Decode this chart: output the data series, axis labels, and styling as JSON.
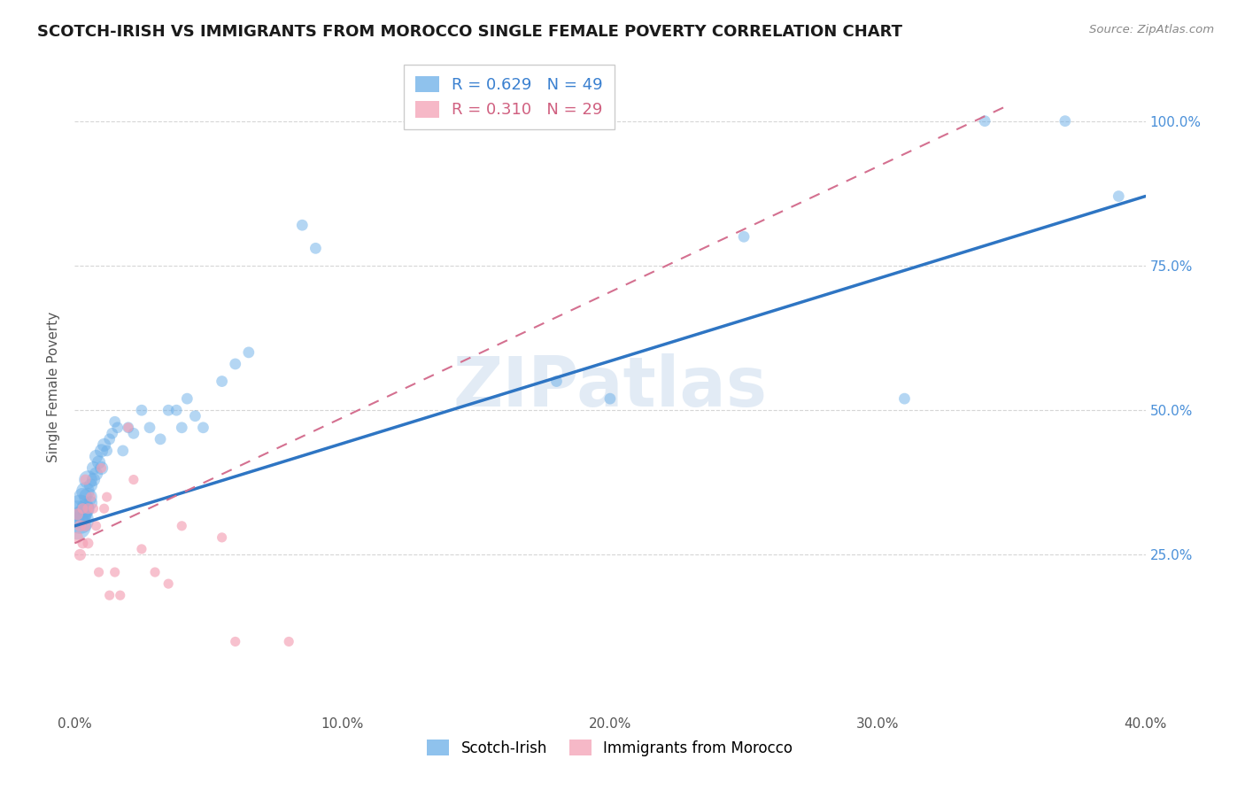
{
  "title": "SCOTCH-IRISH VS IMMIGRANTS FROM MOROCCO SINGLE FEMALE POVERTY CORRELATION CHART",
  "source": "Source: ZipAtlas.com",
  "ylabel": "Single Female Poverty",
  "xlim": [
    0.0,
    0.4
  ],
  "ylim": [
    -0.02,
    1.1
  ],
  "legend_blue_R": "0.629",
  "legend_blue_N": "49",
  "legend_pink_R": "0.310",
  "legend_pink_N": "29",
  "blue_color": "#6aaee8",
  "pink_color": "#f4a0b5",
  "trendline_blue_color": "#2e75c3",
  "trendline_pink_color": "#d47090",
  "watermark": "ZIPatlas",
  "blue_x": [
    0.001,
    0.001,
    0.002,
    0.002,
    0.003,
    0.003,
    0.004,
    0.004,
    0.005,
    0.005,
    0.006,
    0.006,
    0.007,
    0.007,
    0.008,
    0.008,
    0.009,
    0.01,
    0.01,
    0.011,
    0.012,
    0.013,
    0.014,
    0.015,
    0.016,
    0.018,
    0.02,
    0.022,
    0.025,
    0.028,
    0.032,
    0.035,
    0.038,
    0.04,
    0.042,
    0.045,
    0.048,
    0.055,
    0.06,
    0.065,
    0.085,
    0.09,
    0.18,
    0.2,
    0.25,
    0.31,
    0.34,
    0.37,
    0.39
  ],
  "blue_y": [
    0.32,
    0.3,
    0.33,
    0.31,
    0.35,
    0.32,
    0.36,
    0.33,
    0.38,
    0.35,
    0.37,
    0.34,
    0.4,
    0.38,
    0.42,
    0.39,
    0.41,
    0.43,
    0.4,
    0.44,
    0.43,
    0.45,
    0.46,
    0.48,
    0.47,
    0.43,
    0.47,
    0.46,
    0.5,
    0.47,
    0.45,
    0.5,
    0.5,
    0.47,
    0.52,
    0.49,
    0.47,
    0.55,
    0.58,
    0.6,
    0.82,
    0.78,
    0.55,
    0.52,
    0.8,
    0.52,
    1.0,
    1.0,
    0.87
  ],
  "pink_x": [
    0.001,
    0.001,
    0.002,
    0.002,
    0.003,
    0.003,
    0.004,
    0.004,
    0.005,
    0.005,
    0.006,
    0.007,
    0.008,
    0.009,
    0.01,
    0.011,
    0.012,
    0.013,
    0.015,
    0.017,
    0.02,
    0.022,
    0.025,
    0.03,
    0.035,
    0.04,
    0.055,
    0.06,
    0.08
  ],
  "pink_y": [
    0.32,
    0.28,
    0.3,
    0.25,
    0.33,
    0.27,
    0.38,
    0.3,
    0.33,
    0.27,
    0.35,
    0.33,
    0.3,
    0.22,
    0.4,
    0.33,
    0.35,
    0.18,
    0.22,
    0.18,
    0.47,
    0.38,
    0.26,
    0.22,
    0.2,
    0.3,
    0.28,
    0.1,
    0.1
  ],
  "blue_trend_x": [
    0.0,
    0.4
  ],
  "blue_trend_y": [
    0.3,
    0.87
  ],
  "pink_trend_x": [
    0.0,
    0.4
  ],
  "pink_trend_y": [
    0.27,
    1.05
  ],
  "xticks": [
    0.0,
    0.1,
    0.2,
    0.3,
    0.4
  ],
  "xticklabels": [
    "0.0%",
    "10.0%",
    "20.0%",
    "30.0%",
    "40.0%"
  ],
  "yticks": [
    0.25,
    0.5,
    0.75,
    1.0
  ],
  "yticklabels": [
    "25.0%",
    "50.0%",
    "75.0%",
    "100.0%"
  ],
  "grid_color": "#cccccc",
  "title_fontsize": 13,
  "axis_label_fontsize": 11,
  "ylabel_fontsize": 11
}
